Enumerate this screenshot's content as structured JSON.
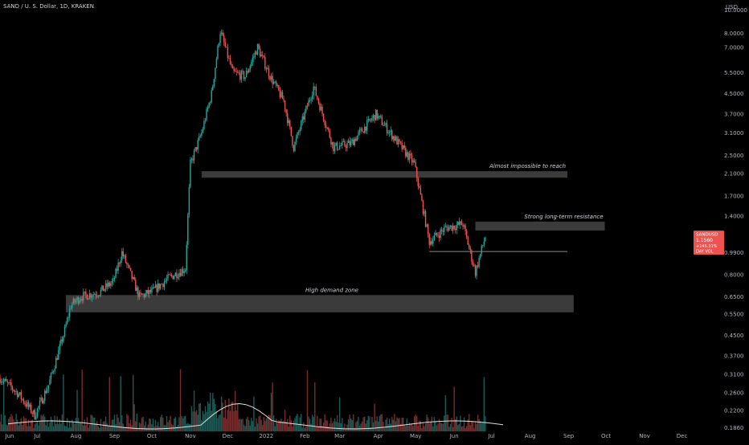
{
  "header": {
    "symbol_title": "SAND / U. S. Dollar, 1D, KRAKEN",
    "currency": "USD"
  },
  "colors": {
    "background": "#000000",
    "up": "#26a69a",
    "down": "#ef5350",
    "axis_text": "#b2b5be",
    "zone": "#4a4a4a",
    "annotation_text": "#d1d4dc"
  },
  "price_label": {
    "symbol": "SANDUSD",
    "price": "1.1560",
    "sub1": "+145.31%",
    "sub2": "DAY VOL"
  },
  "chart_data": {
    "type": "candlestick",
    "title": "SAND / U. S. Dollar, 1D, KRAKEN",
    "y_scale": "log",
    "ylim": [
      0.18,
      10.5
    ],
    "xlim": [
      "2021-06-01",
      "2022-12-31"
    ],
    "x_ticks": [
      "Jun",
      "Jul",
      "Aug",
      "Sep",
      "Oct",
      "Nov",
      "Dec",
      "2022",
      "Feb",
      "Mar",
      "Apr",
      "May",
      "Jun",
      "Jul",
      "Aug",
      "Sep",
      "Oct",
      "Nov",
      "Dec"
    ],
    "y_ticks": [
      "10.0000",
      "8.0000",
      "7.0000",
      "5.5000",
      "4.5000",
      "3.7000",
      "3.1000",
      "2.5000",
      "2.1000",
      "1.7000",
      "1.4000",
      "0.9900",
      "0.8000",
      "0.6500",
      "0.5500",
      "0.4500",
      "0.3700",
      "0.3100",
      "0.2600",
      "0.2200",
      "0.1860"
    ],
    "closes": [
      {
        "date": "2021-06-01",
        "close": 0.3
      },
      {
        "date": "2021-06-15",
        "close": 0.26
      },
      {
        "date": "2021-06-29",
        "close": 0.21
      },
      {
        "date": "2021-07-10",
        "close": 0.28
      },
      {
        "date": "2021-07-22",
        "close": 0.45
      },
      {
        "date": "2021-07-28",
        "close": 0.6
      },
      {
        "date": "2021-08-05",
        "close": 0.65
      },
      {
        "date": "2021-08-20",
        "close": 0.68
      },
      {
        "date": "2021-08-31",
        "close": 0.75
      },
      {
        "date": "2021-09-07",
        "close": 0.99
      },
      {
        "date": "2021-09-21",
        "close": 0.65
      },
      {
        "date": "2021-10-01",
        "close": 0.68
      },
      {
        "date": "2021-10-15",
        "close": 0.78
      },
      {
        "date": "2021-10-28",
        "close": 0.85
      },
      {
        "date": "2021-11-01",
        "close": 2.3
      },
      {
        "date": "2021-11-10",
        "close": 3.1
      },
      {
        "date": "2021-11-18",
        "close": 4.5
      },
      {
        "date": "2021-11-25",
        "close": 8.2
      },
      {
        "date": "2021-12-05",
        "close": 5.5
      },
      {
        "date": "2021-12-15",
        "close": 5.3
      },
      {
        "date": "2021-12-25",
        "close": 7.0
      },
      {
        "date": "2022-01-05",
        "close": 5.2
      },
      {
        "date": "2022-01-15",
        "close": 4.2
      },
      {
        "date": "2022-01-23",
        "close": 2.7
      },
      {
        "date": "2022-02-08",
        "close": 4.8
      },
      {
        "date": "2022-02-24",
        "close": 2.7
      },
      {
        "date": "2022-03-10",
        "close": 2.8
      },
      {
        "date": "2022-03-30",
        "close": 3.7
      },
      {
        "date": "2022-04-15",
        "close": 2.9
      },
      {
        "date": "2022-04-30",
        "close": 2.3
      },
      {
        "date": "2022-05-12",
        "close": 1.1
      },
      {
        "date": "2022-05-25",
        "close": 1.25
      },
      {
        "date": "2022-06-08",
        "close": 1.3
      },
      {
        "date": "2022-06-18",
        "close": 0.82
      },
      {
        "date": "2022-06-26",
        "close": 1.156
      }
    ],
    "annotations": [
      {
        "text": "Almost impossible to reach",
        "type": "zone",
        "from": "2021-11-10",
        "to": "2022-08-31",
        "low": 2.02,
        "high": 2.15
      },
      {
        "text": "Strong long-term resistance",
        "type": "zone",
        "from": "2022-06-18",
        "to": "2022-09-30",
        "low": 1.22,
        "high": 1.33
      },
      {
        "text": "",
        "type": "line",
        "from": "2022-05-12",
        "to": "2022-08-31",
        "value": 1.0
      },
      {
        "text": "High demand zone",
        "type": "zone",
        "from": "2021-07-24",
        "to": "2022-09-05",
        "low": 0.56,
        "high": 0.66
      }
    ],
    "volume": true
  }
}
